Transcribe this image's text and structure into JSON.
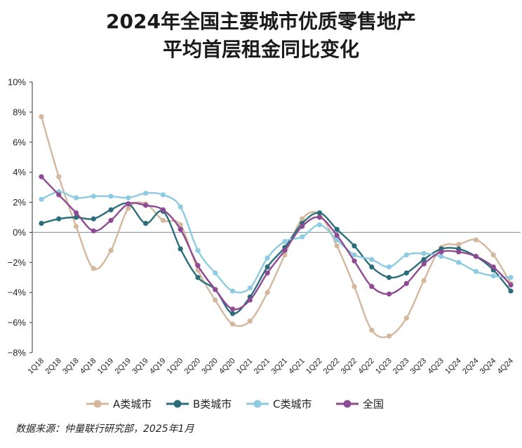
{
  "chart_data": {
    "type": "line",
    "title_line1": "2024年全国主要城市优质零售地产",
    "title_line2": "平均首层租金同比变化",
    "x": [
      "1Q18",
      "2Q18",
      "3Q18",
      "4Q18",
      "1Q19",
      "2Q19",
      "3Q19",
      "4Q19",
      "1Q20",
      "2Q20",
      "3Q20",
      "4Q20",
      "1Q21",
      "2Q21",
      "3Q21",
      "4Q21",
      "1Q22",
      "2Q22",
      "3Q22",
      "4Q22",
      "1Q23",
      "2Q23",
      "3Q23",
      "4Q23",
      "1Q24",
      "2Q24",
      "3Q24",
      "4Q24"
    ],
    "y_tick_labels": [
      "10%",
      "8%",
      "6%",
      "4%",
      "2%",
      "0%",
      "−2%",
      "−4%",
      "−6%",
      "−8%"
    ],
    "ylim": [
      -8,
      10
    ],
    "y_unit": "%",
    "zero_line": true,
    "legend_position": "bottom",
    "series": [
      {
        "name": "A类城市",
        "color": "#d4b89e",
        "values": [
          7.7,
          3.7,
          0.4,
          -2.4,
          -1.2,
          1.6,
          1.9,
          0.8,
          0.5,
          -2.5,
          -4.5,
          -6.1,
          -5.9,
          -4.0,
          -1.5,
          0.9,
          1.2,
          -0.9,
          -3.6,
          -6.5,
          -6.9,
          -5.7,
          -3.2,
          -1.0,
          -0.8,
          -0.5,
          -1.5,
          -3.4
        ]
      },
      {
        "name": "B类城市",
        "color": "#2a6e7c",
        "values": [
          0.6,
          0.9,
          1.0,
          0.9,
          1.5,
          1.9,
          0.6,
          1.4,
          -1.1,
          -3.0,
          -3.8,
          -5.4,
          -4.3,
          -2.3,
          -1.0,
          0.6,
          1.3,
          0.2,
          -0.9,
          -2.3,
          -3.0,
          -2.7,
          -1.8,
          -1.1,
          -1.1,
          -1.6,
          -2.5,
          -3.9
        ]
      },
      {
        "name": "C类城市",
        "color": "#8ccbe0",
        "values": [
          2.2,
          2.7,
          2.3,
          2.4,
          2.4,
          2.3,
          2.6,
          2.5,
          1.7,
          -1.2,
          -2.7,
          -3.9,
          -3.7,
          -1.7,
          -0.6,
          -0.3,
          0.5,
          -0.5,
          -1.5,
          -1.8,
          -2.3,
          -1.5,
          -1.4,
          -1.6,
          -2.0,
          -2.6,
          -2.9,
          -3.0
        ]
      },
      {
        "name": "全国",
        "color": "#8e4a93",
        "values": [
          3.7,
          2.5,
          1.3,
          0.1,
          0.8,
          1.9,
          1.8,
          1.5,
          0.2,
          -2.2,
          -3.8,
          -5.1,
          -4.5,
          -2.7,
          -1.2,
          0.4,
          1.0,
          -0.2,
          -1.9,
          -3.6,
          -4.1,
          -3.4,
          -2.1,
          -1.3,
          -1.3,
          -1.6,
          -2.3,
          -3.5
        ]
      }
    ]
  },
  "source_text": "数据来源：仲量联行研究部，2025年1月"
}
